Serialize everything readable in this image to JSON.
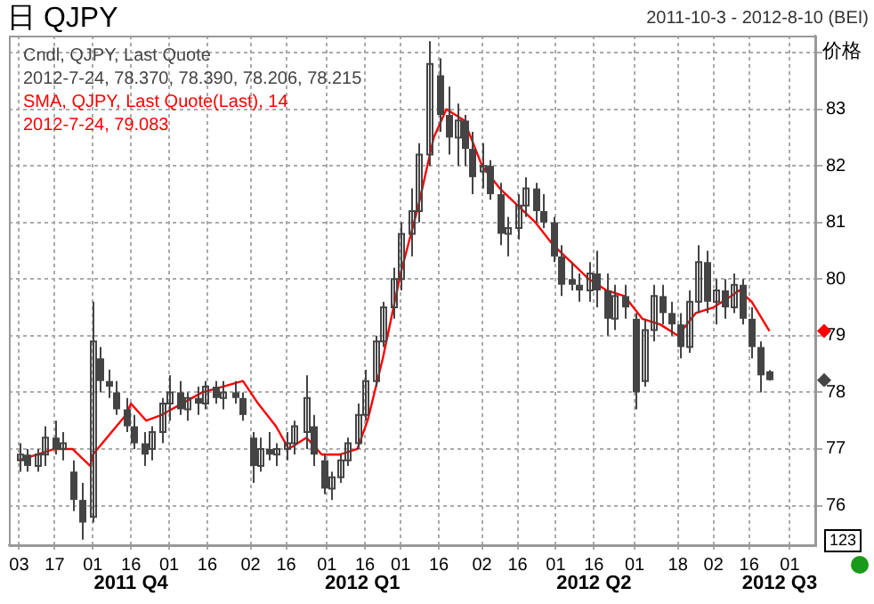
{
  "chart_data": {
    "type": "candlestick",
    "title": "日 QJPY",
    "subtitle": "2011-10-3 - 2012-8-10 (BEI)",
    "ylabel": "价格",
    "legend": "top left",
    "grid": true,
    "xlim": [
      "2011-09-29",
      "2012-08-11"
    ],
    "xticks": [
      {
        "value": "2011-10-03",
        "label": "03"
      },
      {
        "value": "2011-10-17",
        "label": "17"
      },
      {
        "value": "2011-11-01",
        "label": "01"
      },
      {
        "value": "2011-11-16",
        "label": "16"
      },
      {
        "value": "2011-12-01",
        "label": "01"
      },
      {
        "value": "2011-12-16",
        "label": "16"
      },
      {
        "value": "2012-01-02",
        "label": "02"
      },
      {
        "value": "2012-01-16",
        "label": "16"
      },
      {
        "value": "2012-02-01",
        "label": "01"
      },
      {
        "value": "2012-02-16",
        "label": "16"
      },
      {
        "value": "2012-03-01",
        "label": "01"
      },
      {
        "value": "2012-03-16",
        "label": "16"
      },
      {
        "value": "2012-04-02",
        "label": "02"
      },
      {
        "value": "2012-04-16",
        "label": "16"
      },
      {
        "value": "2012-05-01",
        "label": "01"
      },
      {
        "value": "2012-05-16",
        "label": "16"
      },
      {
        "value": "2012-06-01",
        "label": "01"
      },
      {
        "value": "2012-06-18",
        "label": "18"
      },
      {
        "value": "2012-07-02",
        "label": "02"
      },
      {
        "value": "2012-07-16",
        "label": "16"
      },
      {
        "value": "2012-08-01",
        "label": "01"
      }
    ],
    "ylim": [
      75.3,
      84.3
    ],
    "yticks": [
      76,
      77,
      78,
      79,
      80,
      81,
      82,
      83,
      {
        "value": 84,
        "label": null
      }
    ],
    "x2lim": [
      "2011-09-29",
      "2012-08-11"
    ],
    "x2ticks": [
      {
        "value": "2011-11-16",
        "label": "2011 Q4"
      },
      {
        "value": "2012-02-15",
        "label": "2012 Q1"
      },
      {
        "value": "2012-05-16",
        "label": "2012 Q2"
      },
      {
        "value": "2012-07-28",
        "label": "2012 Q3"
      }
    ],
    "annotations": [
      "2012-7-24, 78.370, 78.390, 78.206, 78.215",
      "2012-7-24, 79.083",
      "123"
    ],
    "series": [
      {
        "name": "Cndl, QJPY, Last Quote",
        "type": "candlestick",
        "color": "#444444",
        "x": [
          "2011-10-03",
          "2011-10-06",
          "2011-10-10",
          "2011-10-13",
          "2011-10-17",
          "2011-10-20",
          "2011-10-24",
          "2011-10-28",
          "2011-11-01",
          "2011-11-04",
          "2011-11-07",
          "2011-11-10",
          "2011-11-14",
          "2011-11-17",
          "2011-11-21",
          "2011-11-24",
          "2011-11-28",
          "2011-12-01",
          "2011-12-05",
          "2011-12-08",
          "2011-12-12",
          "2011-12-15",
          "2011-12-19",
          "2011-12-22",
          "2011-12-27",
          "2011-12-30",
          "2012-01-03",
          "2012-01-06",
          "2012-01-09",
          "2012-01-12",
          "2012-01-16",
          "2012-01-19",
          "2012-01-24",
          "2012-01-27",
          "2012-01-31",
          "2012-02-03",
          "2012-02-06",
          "2012-02-09",
          "2012-02-13",
          "2012-02-16",
          "2012-02-20",
          "2012-02-23",
          "2012-02-27",
          "2012-03-01",
          "2012-03-05",
          "2012-03-08",
          "2012-03-12",
          "2012-03-16",
          "2012-03-20",
          "2012-03-23",
          "2012-03-26",
          "2012-03-29",
          "2012-04-02",
          "2012-04-05",
          "2012-04-09",
          "2012-04-12",
          "2012-04-16",
          "2012-04-19",
          "2012-04-23",
          "2012-04-26",
          "2012-04-30",
          "2012-05-03",
          "2012-05-07",
          "2012-05-10",
          "2012-05-14",
          "2012-05-17",
          "2012-05-21",
          "2012-05-24",
          "2012-05-28",
          "2012-06-01",
          "2012-06-05",
          "2012-06-08",
          "2012-06-12",
          "2012-06-15",
          "2012-06-19",
          "2012-06-22",
          "2012-06-26",
          "2012-06-29",
          "2012-07-03",
          "2012-07-06",
          "2012-07-10",
          "2012-07-13",
          "2012-07-17",
          "2012-07-20",
          "2012-07-24"
        ],
        "ohlc": [
          [
            76.8,
            77.1,
            76.6,
            76.9
          ],
          [
            76.9,
            77.0,
            76.6,
            76.7
          ],
          [
            76.7,
            77.0,
            76.6,
            76.9
          ],
          [
            76.9,
            77.4,
            76.7,
            77.2
          ],
          [
            77.2,
            77.5,
            76.9,
            77.0
          ],
          [
            77.0,
            77.3,
            76.8,
            77.1
          ],
          [
            76.6,
            76.8,
            75.9,
            76.1
          ],
          [
            76.1,
            76.4,
            75.4,
            75.7
          ],
          [
            75.8,
            79.6,
            75.7,
            78.9
          ],
          [
            78.6,
            78.8,
            78.0,
            78.2
          ],
          [
            78.2,
            78.4,
            77.9,
            78.1
          ],
          [
            78.0,
            78.2,
            77.6,
            77.7
          ],
          [
            77.7,
            77.9,
            77.3,
            77.4
          ],
          [
            77.4,
            77.6,
            77.0,
            77.1
          ],
          [
            77.1,
            77.3,
            76.7,
            76.9
          ],
          [
            77.0,
            77.4,
            76.8,
            77.3
          ],
          [
            77.3,
            77.9,
            77.1,
            77.8
          ],
          [
            77.8,
            78.3,
            77.5,
            78.0
          ],
          [
            78.0,
            78.2,
            77.6,
            77.7
          ],
          [
            77.7,
            78.0,
            77.5,
            77.9
          ],
          [
            77.9,
            78.1,
            77.6,
            77.8
          ],
          [
            77.8,
            78.2,
            77.7,
            78.1
          ],
          [
            78.1,
            78.2,
            77.8,
            77.9
          ],
          [
            77.9,
            78.2,
            77.7,
            78.0
          ],
          [
            78.0,
            78.2,
            77.8,
            77.9
          ],
          [
            77.9,
            78.0,
            77.5,
            77.6
          ],
          [
            77.2,
            77.3,
            76.4,
            76.7
          ],
          [
            76.7,
            77.2,
            76.6,
            77.0
          ],
          [
            77.0,
            77.3,
            76.8,
            76.9
          ],
          [
            76.9,
            77.1,
            76.7,
            77.0
          ],
          [
            77.0,
            77.3,
            76.8,
            77.1
          ],
          [
            77.1,
            77.5,
            76.9,
            77.4
          ],
          [
            77.3,
            78.3,
            77.0,
            77.9
          ],
          [
            77.4,
            77.6,
            76.7,
            76.9
          ],
          [
            76.8,
            76.9,
            76.2,
            76.3
          ],
          [
            76.3,
            76.6,
            76.1,
            76.5
          ],
          [
            76.5,
            76.9,
            76.4,
            76.8
          ],
          [
            76.8,
            77.2,
            76.7,
            77.1
          ],
          [
            77.1,
            77.8,
            77.0,
            77.6
          ],
          [
            77.6,
            78.4,
            77.5,
            78.2
          ],
          [
            78.2,
            79.0,
            78.1,
            78.9
          ],
          [
            78.9,
            79.6,
            78.8,
            79.5
          ],
          [
            79.5,
            80.2,
            79.3,
            80.0
          ],
          [
            80.0,
            81.0,
            79.8,
            80.8
          ],
          [
            80.8,
            81.6,
            80.4,
            81.2
          ],
          [
            81.2,
            82.4,
            81.0,
            82.2
          ],
          [
            82.2,
            84.2,
            82.0,
            83.8
          ],
          [
            83.6,
            83.9,
            82.6,
            82.9
          ],
          [
            82.9,
            83.4,
            82.2,
            82.5
          ],
          [
            82.5,
            83.1,
            82.0,
            82.8
          ],
          [
            82.8,
            82.9,
            82.0,
            82.3
          ],
          [
            82.3,
            82.6,
            81.5,
            81.8
          ],
          [
            81.9,
            82.4,
            81.6,
            82.0
          ],
          [
            82.0,
            82.1,
            81.4,
            81.5
          ],
          [
            81.5,
            81.7,
            80.6,
            80.8
          ],
          [
            80.8,
            81.1,
            80.4,
            80.9
          ],
          [
            80.9,
            81.5,
            80.7,
            81.3
          ],
          [
            81.3,
            81.8,
            81.1,
            81.6
          ],
          [
            81.6,
            81.7,
            81.0,
            81.2
          ],
          [
            81.2,
            81.5,
            80.9,
            81.0
          ],
          [
            81.0,
            81.1,
            80.3,
            80.4
          ],
          [
            80.4,
            80.6,
            79.7,
            79.9
          ],
          [
            80.0,
            80.3,
            79.8,
            79.9
          ],
          [
            79.9,
            80.1,
            79.6,
            79.8
          ],
          [
            79.8,
            80.3,
            79.6,
            80.1
          ],
          [
            80.1,
            80.5,
            79.5,
            79.8
          ],
          [
            79.8,
            80.1,
            79.0,
            79.3
          ],
          [
            79.3,
            79.9,
            79.1,
            79.7
          ],
          [
            79.7,
            79.9,
            79.3,
            79.5
          ],
          [
            79.3,
            79.4,
            77.7,
            78.0
          ],
          [
            78.2,
            79.3,
            78.1,
            79.1
          ],
          [
            79.1,
            79.9,
            78.9,
            79.7
          ],
          [
            79.7,
            79.9,
            79.2,
            79.4
          ],
          [
            79.4,
            79.6,
            79.0,
            79.2
          ],
          [
            79.2,
            79.4,
            78.6,
            78.8
          ],
          [
            78.8,
            79.8,
            78.7,
            79.6
          ],
          [
            79.6,
            80.6,
            79.4,
            80.3
          ],
          [
            80.3,
            80.5,
            79.4,
            79.6
          ],
          [
            79.6,
            80.0,
            79.2,
            79.8
          ],
          [
            79.8,
            80.0,
            79.3,
            79.5
          ],
          [
            79.5,
            80.1,
            79.4,
            79.9
          ],
          [
            79.9,
            80.0,
            79.2,
            79.3
          ],
          [
            79.3,
            79.5,
            78.6,
            78.8
          ],
          [
            78.8,
            78.9,
            78.0,
            78.3
          ],
          [
            78.37,
            78.39,
            78.206,
            78.215
          ]
        ]
      },
      {
        "name": "SMA, QJPY, Last Quote(Last), 14",
        "type": "line",
        "color": "#ff0000",
        "x": [
          "2011-10-03",
          "2011-10-17",
          "2011-10-24",
          "2011-10-31",
          "2011-11-01",
          "2011-11-14",
          "2011-11-16",
          "2011-11-22",
          "2011-11-28",
          "2011-12-06",
          "2011-12-14",
          "2011-12-22",
          "2011-12-30",
          "2012-01-05",
          "2012-01-12",
          "2012-01-17",
          "2012-01-24",
          "2012-01-30",
          "2012-02-06",
          "2012-02-13",
          "2012-02-17",
          "2012-02-23",
          "2012-03-01",
          "2012-03-08",
          "2012-03-14",
          "2012-03-19",
          "2012-03-26",
          "2012-04-02",
          "2012-04-09",
          "2012-04-16",
          "2012-04-23",
          "2012-04-30",
          "2012-05-07",
          "2012-05-14",
          "2012-05-21",
          "2012-05-28",
          "2012-06-04",
          "2012-06-11",
          "2012-06-18",
          "2012-06-25",
          "2012-07-02",
          "2012-07-09",
          "2012-07-12",
          "2012-07-17",
          "2012-07-24"
        ],
        "values": [
          76.8,
          77.0,
          77.0,
          76.7,
          76.9,
          77.6,
          77.8,
          77.5,
          77.6,
          77.8,
          78.0,
          78.1,
          78.2,
          77.8,
          77.4,
          77.0,
          77.2,
          76.9,
          76.9,
          77.0,
          77.5,
          78.6,
          80.1,
          81.3,
          82.5,
          83.0,
          82.8,
          82.0,
          81.6,
          81.3,
          81.0,
          80.6,
          80.3,
          80.0,
          79.8,
          79.7,
          79.3,
          79.2,
          79.0,
          79.4,
          79.5,
          79.7,
          79.8,
          79.6,
          79.083
        ]
      }
    ]
  }
}
